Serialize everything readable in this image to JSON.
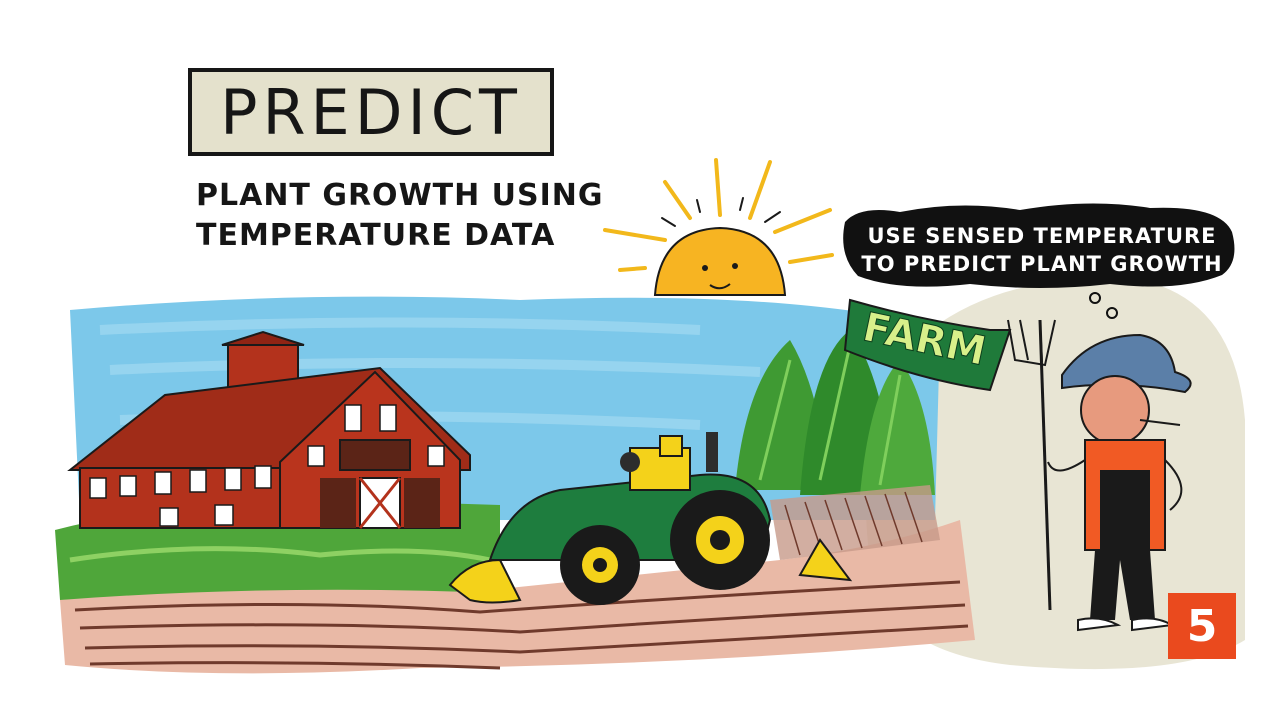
{
  "title": "PREDICT",
  "subtitle": {
    "line1": "PLANT GROWTH USING",
    "line2": "TEMPERATURE DATA"
  },
  "thought": {
    "line1": "USE SENSED TEMPERATURE",
    "line2": "TO PREDICT PLANT GROWTH"
  },
  "farm_sign": "FARM",
  "page_number": "5",
  "colors": {
    "sky": "#7cc8ea",
    "barn": "#b3321c",
    "tractor": "#1e7d3e",
    "tractor_accent": "#f4d21a",
    "sun": "#f7b422",
    "hedge": "#4fa63a",
    "soil": "#e9b9a6",
    "badge": "#ea4a1e"
  }
}
